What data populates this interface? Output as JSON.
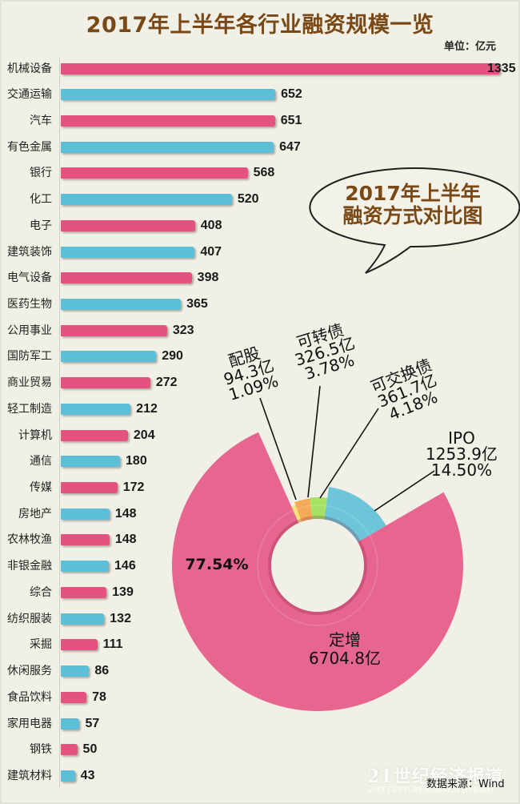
{
  "header": {
    "title": "2017年上半年各行业融资规模一览",
    "unit": "单位：亿元"
  },
  "bubble": {
    "line1": "2017年上半年",
    "line2": "融资方式对比图"
  },
  "footer": {
    "watermark": "21世纪经济报道",
    "watermark_en": "21ST CENTURY BUSINESS HERALD",
    "source": "数据来源：Wind"
  },
  "chart_data": [
    {
      "type": "bar",
      "orientation": "horizontal",
      "title": "2017年上半年各行业融资规模一览",
      "xlabel": "",
      "ylabel": "",
      "unit": "亿元",
      "grid": false,
      "legend": null,
      "xlim": [
        0,
        1335
      ],
      "categories": [
        "机械设备",
        "交通运输",
        "汽车",
        "有色金属",
        "银行",
        "化工",
        "电子",
        "建筑装饰",
        "电气设备",
        "医药生物",
        "公用事业",
        "国防军工",
        "商业贸易",
        "轻工制造",
        "计算机",
        "通信",
        "传媒",
        "房地产",
        "农林牧渔",
        "非银金融",
        "综合",
        "纺织服装",
        "采掘",
        "休闲服务",
        "食品饮料",
        "家用电器",
        "钢铁",
        "建筑材料"
      ],
      "values": [
        1335,
        652,
        651,
        647,
        568,
        520,
        408,
        407,
        398,
        365,
        323,
        290,
        272,
        212,
        204,
        180,
        172,
        148,
        148,
        146,
        139,
        132,
        111,
        86,
        78,
        57,
        50,
        43
      ],
      "colors": [
        "#e4527f",
        "#5cbfd7"
      ]
    },
    {
      "type": "pie",
      "variant": "rose-donut",
      "title": "2017年上半年融资方式对比图",
      "labels": [
        "配股",
        "可转债",
        "可交换债",
        "IPO",
        "定增"
      ],
      "values": [
        94.3,
        326.5,
        361.7,
        1253.9,
        6704.8
      ],
      "percentages": [
        1.09,
        3.78,
        4.18,
        14.5,
        77.54
      ],
      "value_labels": [
        "94.3亿",
        "326.5亿",
        "361.7亿",
        "1253.9亿",
        "6704.8亿"
      ],
      "pct_labels": [
        "1.09%",
        "3.78%",
        "4.18%",
        "14.50%",
        "77.54%"
      ],
      "unit": "亿",
      "colors": [
        "#f6e27a",
        "#f5aa58",
        "#a6e163",
        "#6cc5d9",
        "#e6668f"
      ],
      "render": {
        "center": [
          397,
          706
        ],
        "start_angle_deg": -24,
        "inner_radius": 58,
        "outer_radii": [
          80,
          84,
          85,
          99,
          182
        ]
      }
    }
  ]
}
